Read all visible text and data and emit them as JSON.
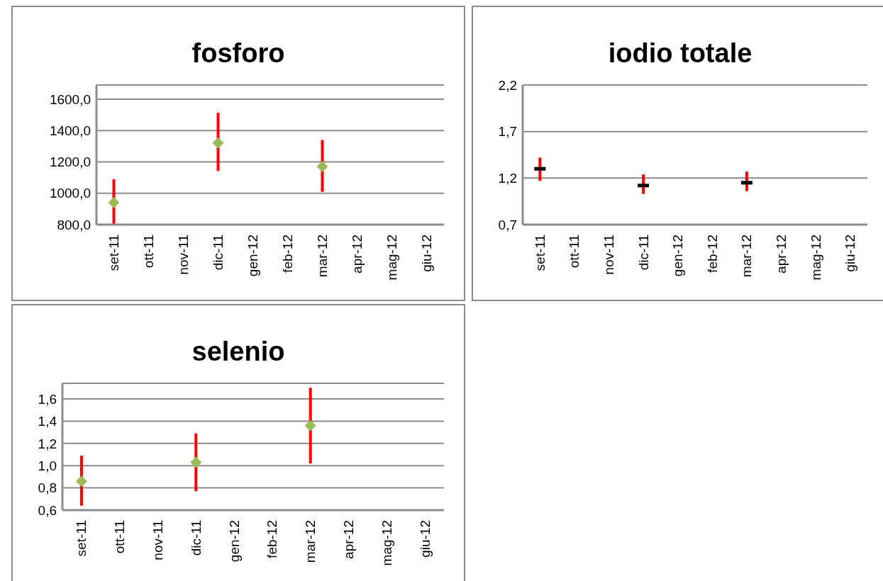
{
  "chart_data": [
    {
      "type": "scatter",
      "title": "fosforo",
      "categories": [
        "set-11",
        "ott-11",
        "nov-11",
        "dic-11",
        "gen-12",
        "feb-12",
        "mar-12",
        "apr-12",
        "mag-12",
        "giu-12"
      ],
      "series": [
        {
          "color": "#9bbb59",
          "values": [
            940,
            null,
            null,
            1321,
            null,
            null,
            1171,
            null,
            null,
            null
          ],
          "errors": [
            [
              800,
              1089
            ],
            null,
            null,
            [
              1142,
              1513
            ],
            null,
            null,
            [
              1009,
              1340
            ],
            null,
            null,
            null
          ]
        }
      ],
      "marker": "diamond",
      "ylim": [
        800,
        1690
      ],
      "yticks": [
        {
          "value": 800,
          "label": "800,0"
        },
        {
          "value": 1000,
          "label": "1000,0"
        },
        {
          "value": 1200,
          "label": "1200,0"
        },
        {
          "value": 1400,
          "label": "1400,0"
        },
        {
          "value": 1600,
          "label": "1600,0"
        }
      ],
      "grid": "y"
    },
    {
      "type": "scatter",
      "title": "iodio totale",
      "categories": [
        "set-11",
        "ott-11",
        "nov-11",
        "dic-11",
        "gen-12",
        "feb-12",
        "mar-12",
        "apr-12",
        "mag-12",
        "giu-12"
      ],
      "series": [
        {
          "color": "#000000",
          "values": [
            1.3,
            null,
            null,
            1.12,
            null,
            null,
            1.15,
            null,
            null,
            null
          ],
          "errors": [
            [
              1.17,
              1.42
            ],
            null,
            null,
            [
              1.03,
              1.24
            ],
            null,
            null,
            [
              1.06,
              1.27
            ],
            null,
            null,
            null
          ]
        }
      ],
      "ylim": [
        0.7,
        2.2
      ],
      "yticks": [
        {
          "value": 0.7,
          "label": "0,7"
        },
        {
          "value": 1.2,
          "label": "1,2"
        },
        {
          "value": 1.7,
          "label": "1,7"
        },
        {
          "value": 2.2,
          "label": "2,2"
        }
      ],
      "grid": "y"
    },
    {
      "type": "scatter",
      "title": "selenio",
      "categories": [
        "set-11",
        "ott-11",
        "nov-11",
        "dic-11",
        "gen-12",
        "feb-12",
        "mar-12",
        "apr-12",
        "mag-12",
        "giu-12"
      ],
      "series": [
        {
          "color": "#9bbb59",
          "values": [
            0.86,
            null,
            null,
            1.03,
            null,
            null,
            1.36,
            null,
            null,
            null
          ],
          "errors": [
            [
              0.64,
              1.09
            ],
            null,
            null,
            [
              0.77,
              1.29
            ],
            null,
            null,
            [
              1.02,
              1.7
            ],
            null,
            null,
            null
          ]
        }
      ],
      "marker": "diamond",
      "ylim": [
        0.6,
        1.74
      ],
      "yticks": [
        {
          "value": 0.6,
          "label": "0,6"
        },
        {
          "value": 0.8,
          "label": "0,8"
        },
        {
          "value": 1.0,
          "label": "1,0"
        },
        {
          "value": 1.2,
          "label": "1,2"
        },
        {
          "value": 1.4,
          "label": "1,4"
        },
        {
          "value": 1.6,
          "label": "1,6"
        }
      ],
      "grid": "y"
    }
  ]
}
